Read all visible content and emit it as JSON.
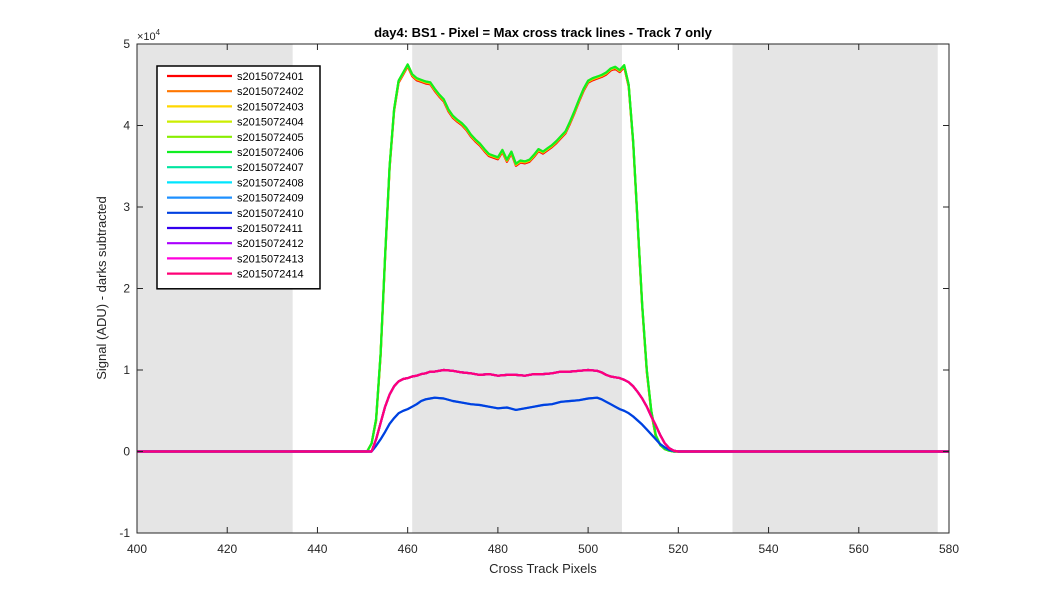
{
  "chart_data": {
    "type": "line",
    "title": "day4: BS1 - Pixel = Max cross track lines - Track 7 only",
    "xlabel": "Cross Track Pixels",
    "ylabel": "Signal (ADU) - darks subtracted",
    "xlim": [
      400,
      580
    ],
    "ylim": [
      -10000,
      50000
    ],
    "x_ticks": [
      400,
      420,
      440,
      460,
      480,
      500,
      520,
      540,
      560,
      580
    ],
    "y_ticks": [
      -1,
      0,
      1,
      2,
      3,
      4,
      5
    ],
    "y_multiplier_label": "×10",
    "y_multiplier_exp": "4",
    "y_tick_scale": 10000,
    "grid": false,
    "legend_position": "top-left",
    "shaded_x_ranges": [
      [
        400,
        434.5
      ],
      [
        461,
        507.5
      ],
      [
        532,
        577.5
      ]
    ],
    "shade_color": "#e5e5e5",
    "profiles": {
      "high": {
        "x": [
          400,
          451,
          452,
          453,
          454,
          455,
          456,
          457,
          458,
          459,
          460,
          461,
          462,
          463,
          464,
          465,
          466,
          467,
          468,
          469,
          470,
          471,
          472,
          473,
          474,
          475,
          476,
          477,
          478,
          479,
          480,
          481,
          482,
          483,
          484,
          485,
          486,
          487,
          488,
          489,
          490,
          491,
          492,
          493,
          494,
          495,
          496,
          497,
          498,
          499,
          500,
          501,
          502,
          503,
          504,
          505,
          506,
          507,
          508,
          509,
          510,
          511,
          512,
          513,
          514,
          515,
          516,
          517,
          518,
          519,
          520,
          580
        ],
        "y": [
          0,
          0,
          1000,
          4000,
          12000,
          24000,
          35000,
          42000,
          45500,
          46500,
          47500,
          46300,
          45800,
          45600,
          45400,
          45300,
          44500,
          43800,
          43200,
          42000,
          41200,
          40700,
          40300,
          39700,
          38900,
          38300,
          37800,
          37100,
          36500,
          36300,
          36100,
          37000,
          35800,
          36800,
          35300,
          35700,
          35600,
          35800,
          36400,
          37100,
          36800,
          37200,
          37600,
          38100,
          38700,
          39300,
          40500,
          41800,
          43200,
          44500,
          45500,
          45800,
          46000,
          46200,
          46500,
          47000,
          47200,
          46800,
          47400,
          45000,
          38000,
          28000,
          18000,
          10000,
          5000,
          2000,
          800,
          300,
          100,
          0,
          0,
          0
        ]
      },
      "mid": {
        "x": [
          400,
          452,
          453,
          454,
          455,
          456,
          457,
          458,
          459,
          460,
          461,
          462,
          463,
          464,
          465,
          466,
          468,
          470,
          472,
          474,
          476,
          478,
          480,
          482,
          484,
          486,
          488,
          490,
          492,
          494,
          496,
          498,
          500,
          502,
          503,
          504,
          505,
          506,
          507,
          508,
          509,
          510,
          511,
          512,
          513,
          514,
          515,
          516,
          517,
          518,
          519,
          520,
          580
        ],
        "y": [
          0,
          0,
          1500,
          3500,
          5500,
          7000,
          8000,
          8600,
          8900,
          9000,
          9200,
          9300,
          9500,
          9600,
          9800,
          9800,
          10000,
          9900,
          9700,
          9600,
          9400,
          9500,
          9300,
          9400,
          9400,
          9300,
          9500,
          9500,
          9600,
          9800,
          9800,
          9900,
          10000,
          9900,
          9700,
          9400,
          9200,
          9100,
          9000,
          8800,
          8500,
          8000,
          7300,
          6500,
          5500,
          4300,
          3200,
          2000,
          1000,
          400,
          100,
          0,
          0
        ]
      },
      "low": {
        "x": [
          400,
          452,
          453,
          454,
          455,
          456,
          457,
          458,
          459,
          460,
          461,
          462,
          463,
          464,
          465,
          466,
          468,
          470,
          472,
          474,
          476,
          478,
          480,
          482,
          484,
          486,
          488,
          490,
          492,
          494,
          496,
          498,
          500,
          502,
          503,
          504,
          505,
          506,
          507,
          508,
          509,
          510,
          511,
          512,
          513,
          514,
          515,
          516,
          517,
          518,
          519,
          520,
          580
        ],
        "y": [
          0,
          0,
          700,
          1500,
          2400,
          3400,
          4100,
          4700,
          5000,
          5200,
          5500,
          5800,
          6200,
          6400,
          6500,
          6600,
          6500,
          6200,
          6000,
          5800,
          5700,
          5500,
          5300,
          5400,
          5100,
          5300,
          5500,
          5700,
          5800,
          6100,
          6200,
          6300,
          6500,
          6600,
          6400,
          6100,
          5800,
          5500,
          5200,
          5000,
          4700,
          4300,
          3800,
          3300,
          2700,
          2100,
          1500,
          900,
          500,
          200,
          50,
          0,
          0
        ]
      }
    },
    "series": [
      {
        "name": "s2015072401",
        "color": "#ff0000",
        "profile": "high",
        "offset": -250
      },
      {
        "name": "s2015072402",
        "color": "#ff7700",
        "profile": "high",
        "offset": -150
      },
      {
        "name": "s2015072403",
        "color": "#ffd700",
        "profile": "high",
        "offset": -80
      },
      {
        "name": "s2015072404",
        "color": "#ccee00",
        "profile": "high",
        "offset": -30
      },
      {
        "name": "s2015072405",
        "color": "#88ee00",
        "profile": "high",
        "offset": 0
      },
      {
        "name": "s2015072406",
        "color": "#11ee22",
        "profile": "high",
        "offset": 0
      },
      {
        "name": "s2015072407",
        "color": "#00e5a0",
        "profile": "mid",
        "offset": 0
      },
      {
        "name": "s2015072408",
        "color": "#00e5ff",
        "profile": "mid",
        "offset": 0
      },
      {
        "name": "s2015072409",
        "color": "#1f90ff",
        "profile": "low",
        "offset": 0
      },
      {
        "name": "s2015072410",
        "color": "#0040e0",
        "profile": "low",
        "offset": 0
      },
      {
        "name": "s2015072411",
        "color": "#3300ee",
        "profile": "mid",
        "offset": 0
      },
      {
        "name": "s2015072412",
        "color": "#aa00ff",
        "profile": "mid",
        "offset": 0
      },
      {
        "name": "s2015072413",
        "color": "#ff00dd",
        "profile": "mid",
        "offset": 0
      },
      {
        "name": "s2015072414",
        "color": "#ff0077",
        "profile": "mid",
        "offset": 0
      }
    ]
  }
}
